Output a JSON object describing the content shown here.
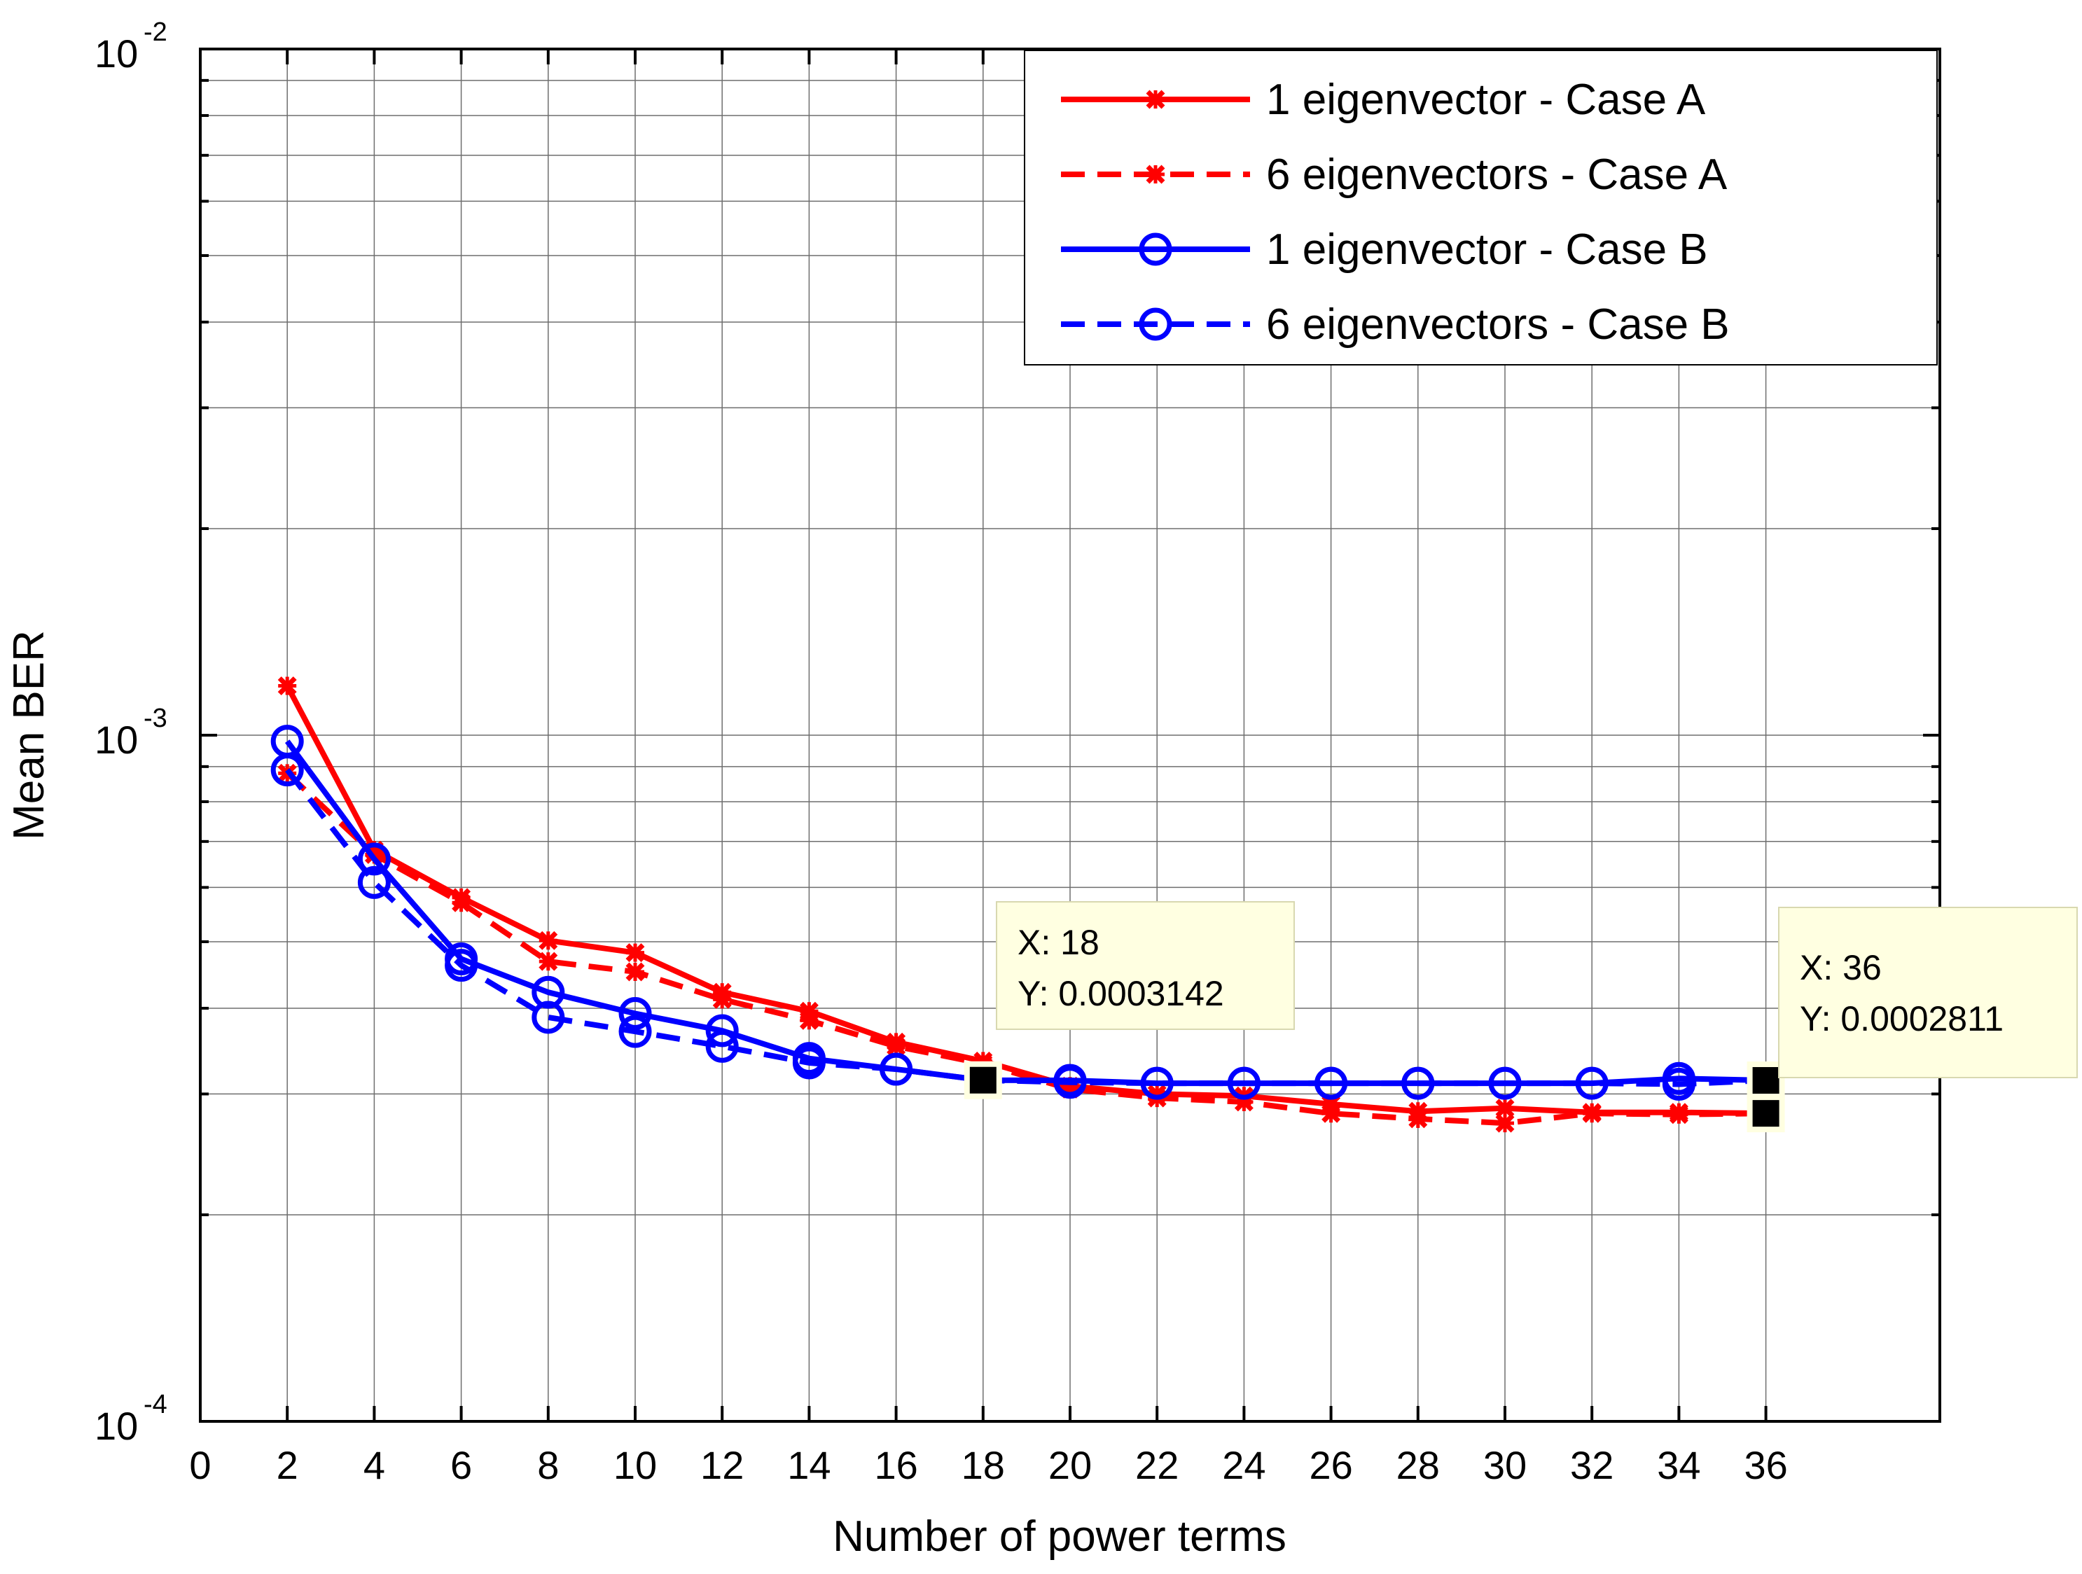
{
  "chart_data": {
    "type": "line",
    "xlabel": "Number of power terms",
    "ylabel": "Mean BER",
    "xlim": [
      0,
      40
    ],
    "ylim": [
      0.0001,
      0.01
    ],
    "yscale": "log",
    "grid": true,
    "x_ticks": [
      0,
      2,
      4,
      6,
      8,
      10,
      12,
      14,
      16,
      18,
      20,
      22,
      24,
      26,
      28,
      30,
      32,
      34,
      36
    ],
    "x_tick_labels": [
      "0",
      "2",
      "4",
      "6",
      "8",
      "10",
      "12",
      "14",
      "16",
      "18",
      "20",
      "22",
      "24",
      "26",
      "28",
      "30",
      "32",
      "34",
      "36"
    ],
    "y_ticks": [
      {
        "value": 0.0001,
        "base": "10",
        "exp": "-4"
      },
      {
        "value": 0.001,
        "base": "10",
        "exp": "-3"
      },
      {
        "value": 0.01,
        "base": "10",
        "exp": "-2"
      }
    ],
    "x": [
      2,
      4,
      6,
      8,
      10,
      12,
      14,
      16,
      18,
      20,
      22,
      24,
      26,
      28,
      30,
      32,
      34,
      36
    ],
    "series": [
      {
        "name": "1 eigenvector - Case A",
        "color": "#ff0000",
        "dash": "solid",
        "marker": "x",
        "values": [
          0.00118,
          0.00068,
          0.00058,
          0.000502,
          0.000482,
          0.000422,
          0.000396,
          0.000357,
          0.000335,
          0.000308,
          0.0003,
          0.000298,
          0.00029,
          0.000283,
          0.000286,
          0.000282,
          0.000282,
          0.0002811
        ]
      },
      {
        "name": "6 eigenvectors - Case A",
        "color": "#ff0000",
        "dash": "dashed",
        "marker": "x",
        "values": [
          0.00088,
          0.00067,
          0.00057,
          0.000468,
          0.000452,
          0.000412,
          0.000384,
          0.000352,
          0.000332,
          0.000305,
          0.000296,
          0.000292,
          0.000281,
          0.000276,
          0.000272,
          0.000281,
          0.00028,
          0.0002811
        ]
      },
      {
        "name": "1 eigenvector - Case B",
        "color": "#0000ff",
        "dash": "solid",
        "marker": "o",
        "values": [
          0.00098,
          0.00066,
          0.000472,
          0.000422,
          0.000393,
          0.000371,
          0.000338,
          0.000326,
          0.0003142,
          0.000314,
          0.000311,
          0.000311,
          0.000311,
          0.000311,
          0.000311,
          0.000311,
          0.000316,
          0.000314
        ]
      },
      {
        "name": "6 eigenvectors - Case B",
        "color": "#0000ff",
        "dash": "dashed",
        "marker": "o",
        "values": [
          0.00089,
          0.00061,
          0.000462,
          0.000388,
          0.00037,
          0.000352,
          0.000333,
          0.000326,
          0.0003142,
          0.000312,
          0.000311,
          0.000311,
          0.000311,
          0.000311,
          0.000311,
          0.000311,
          0.00031,
          0.000314
        ]
      }
    ],
    "legend_position": "top-right",
    "datatips": [
      {
        "x": 18,
        "y": 0.0003142,
        "x_label": "X: 18",
        "y_label": "Y: 0.0003142"
      },
      {
        "x": 36,
        "y": 0.0002811,
        "x_label": "X: 36",
        "y_label": "Y: 0.0002811"
      }
    ],
    "datatip_markers": [
      {
        "x": 18,
        "y": 0.0003142
      },
      {
        "x": 36,
        "y": 0.000314
      },
      {
        "x": 36,
        "y": 0.0002811
      }
    ]
  }
}
